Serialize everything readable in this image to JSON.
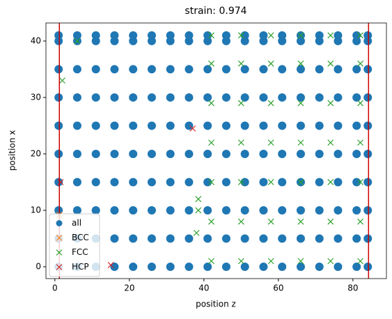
{
  "chart_data": {
    "type": "scatter",
    "title": "strain: 0.974",
    "xlabel": "position z",
    "ylabel": "position x",
    "xlim": [
      -2.4,
      89
    ],
    "ylim": [
      -2.1,
      43.2
    ],
    "xticks": [
      0,
      20,
      40,
      60,
      80
    ],
    "yticks": [
      0,
      10,
      20,
      30,
      40
    ],
    "grid": false,
    "legend": "lower left",
    "vlines": [
      1.2,
      84.2
    ],
    "vline_color": "#cc0000",
    "series": [
      {
        "name": "all",
        "color": "#1f77b4",
        "marker": "o",
        "x": [
          1,
          6,
          11,
          16,
          21,
          26,
          31,
          36,
          41,
          46,
          51,
          56,
          61,
          66,
          71,
          76,
          81,
          84,
          1,
          6,
          11,
          16,
          21,
          26,
          31,
          36,
          41,
          46,
          51,
          56,
          61,
          66,
          71,
          76,
          81,
          84,
          1,
          6,
          11,
          16,
          21,
          26,
          31,
          36,
          41,
          46,
          51,
          56,
          61,
          66,
          71,
          76,
          81,
          84,
          1,
          6,
          11,
          16,
          21,
          26,
          31,
          36,
          41,
          46,
          51,
          56,
          61,
          66,
          71,
          76,
          81,
          84,
          1,
          6,
          11,
          16,
          21,
          26,
          31,
          36,
          41,
          46,
          51,
          56,
          61,
          66,
          71,
          76,
          81,
          84,
          1,
          6,
          11,
          16,
          21,
          26,
          31,
          36,
          41,
          46,
          51,
          56,
          61,
          66,
          71,
          76,
          81,
          84,
          1,
          6,
          11,
          16,
          21,
          26,
          31,
          36,
          41,
          46,
          51,
          56,
          61,
          66,
          71,
          76,
          81,
          84,
          1,
          6,
          11,
          16,
          21,
          26,
          31,
          36,
          41,
          46,
          51,
          56,
          61,
          66,
          71,
          76,
          81,
          84,
          1,
          6,
          11,
          16,
          21,
          26,
          31,
          36,
          41,
          46,
          51,
          56,
          61,
          66,
          71,
          76,
          81,
          84,
          1,
          6,
          11,
          16,
          21,
          26,
          31,
          36,
          41,
          46,
          51,
          56,
          61,
          66,
          71,
          76,
          81,
          84
        ],
        "y": [
          0,
          0,
          0,
          0,
          0,
          0,
          0,
          0,
          0,
          0,
          0,
          0,
          0,
          0,
          0,
          0,
          0,
          0,
          5,
          5,
          5,
          5,
          5,
          5,
          5,
          5,
          5,
          5,
          5,
          5,
          5,
          5,
          5,
          5,
          5,
          5,
          10,
          10,
          10,
          10,
          10,
          10,
          10,
          10,
          10,
          10,
          10,
          10,
          10,
          10,
          10,
          10,
          10,
          10,
          15,
          15,
          15,
          15,
          15,
          15,
          15,
          15,
          15,
          15,
          15,
          15,
          15,
          15,
          15,
          15,
          15,
          15,
          20,
          20,
          20,
          20,
          20,
          20,
          20,
          20,
          20,
          20,
          20,
          20,
          20,
          20,
          20,
          20,
          20,
          20,
          25,
          25,
          25,
          25,
          25,
          25,
          25,
          25,
          25,
          25,
          25,
          25,
          25,
          25,
          25,
          25,
          25,
          25,
          30,
          30,
          30,
          30,
          30,
          30,
          30,
          30,
          30,
          30,
          30,
          30,
          30,
          30,
          30,
          30,
          30,
          30,
          35,
          35,
          35,
          35,
          35,
          35,
          35,
          35,
          35,
          35,
          35,
          35,
          35,
          35,
          35,
          35,
          35,
          35,
          40,
          40,
          40,
          40,
          40,
          40,
          40,
          40,
          40,
          40,
          40,
          40,
          40,
          40,
          40,
          40,
          40,
          40,
          41,
          41,
          41,
          41,
          41,
          41,
          41,
          41,
          41,
          41,
          41,
          41,
          41,
          41,
          41,
          41,
          41,
          41
        ]
      },
      {
        "name": "BCC",
        "color": "#ff7f0e",
        "marker": "x",
        "x": [
          1.2
        ],
        "y": [
          9.2
        ]
      },
      {
        "name": "FCC",
        "color": "#2ca02c",
        "marker": "x",
        "x": [
          42,
          50,
          58,
          66,
          74,
          82,
          42,
          50,
          58,
          66,
          74,
          82,
          42,
          50,
          58,
          66,
          74,
          82,
          42,
          50,
          58,
          66,
          74,
          82,
          42,
          50,
          58,
          66,
          74,
          82,
          42,
          50,
          58,
          66,
          74,
          82,
          42,
          50,
          58,
          66,
          74,
          82,
          38.5,
          38.5,
          38,
          6,
          2
        ],
        "y": [
          1,
          1,
          1,
          1,
          1,
          1,
          8,
          8,
          8,
          8,
          8,
          8,
          15,
          15,
          15,
          15,
          15,
          15,
          22,
          22,
          22,
          22,
          22,
          22,
          29,
          29,
          29,
          29,
          29,
          29,
          36,
          36,
          36,
          36,
          36,
          36,
          41,
          41,
          41,
          41,
          41,
          41,
          10,
          12,
          6,
          40,
          33
        ]
      },
      {
        "name": "HCP",
        "color": "#d62728",
        "marker": "x",
        "x": [
          15,
          37,
          1.5
        ],
        "y": [
          0.3,
          24.5,
          15
        ]
      }
    ]
  }
}
